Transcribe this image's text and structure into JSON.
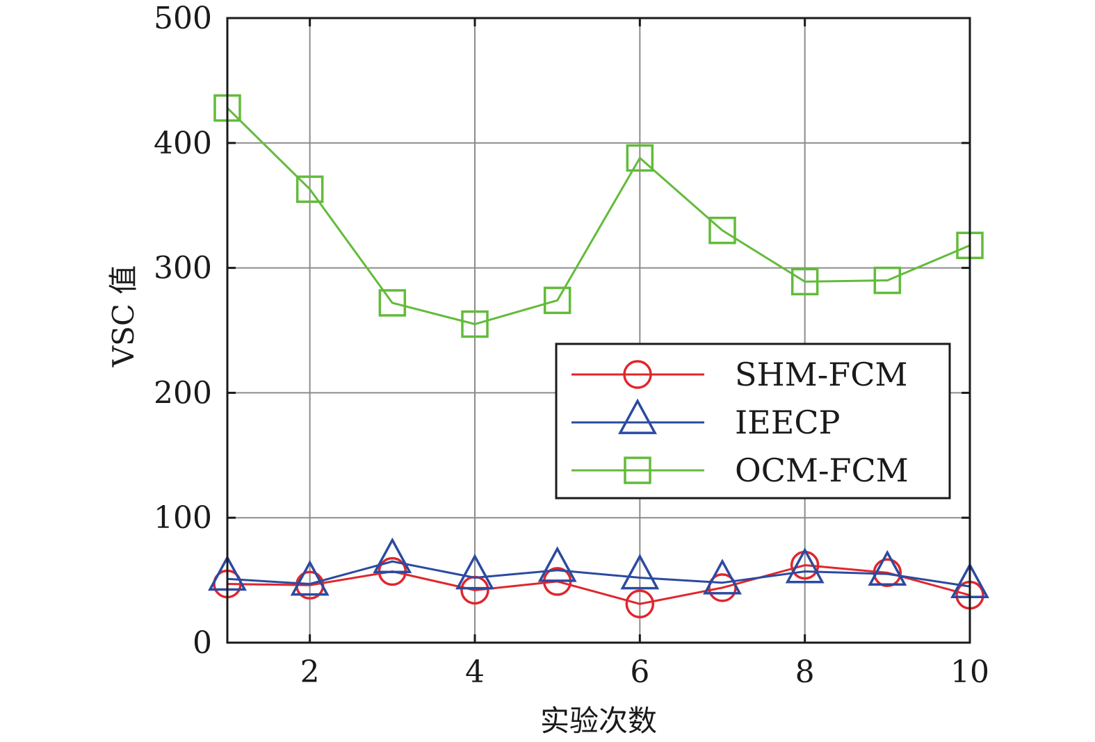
{
  "chart_data": {
    "type": "line",
    "title": "",
    "xlabel": "实验次数",
    "ylabel": "VSC 值",
    "xlim": [
      1,
      10
    ],
    "ylim": [
      0,
      500
    ],
    "xticks": [
      2,
      4,
      6,
      8,
      10
    ],
    "yticks": [
      0,
      100,
      200,
      300,
      400,
      500
    ],
    "grid": true,
    "legend_position": "center-right",
    "x": [
      1,
      2,
      3,
      4,
      5,
      6,
      7,
      8,
      9,
      10
    ],
    "series": [
      {
        "name": "SHM-FCM",
        "color": "#e0262b",
        "marker": "circle",
        "values": [
          47,
          46,
          57,
          42,
          49,
          31,
          44,
          62,
          56,
          38
        ]
      },
      {
        "name": "IEECP",
        "color": "#2b4aa0",
        "marker": "triangle",
        "values": [
          51,
          47,
          65,
          52,
          58,
          52,
          48,
          57,
          55,
          45
        ]
      },
      {
        "name": "OCM-FCM",
        "color": "#62bb3a",
        "marker": "square",
        "values": [
          428,
          363,
          272,
          255,
          274,
          388,
          330,
          289,
          290,
          318
        ]
      }
    ]
  }
}
